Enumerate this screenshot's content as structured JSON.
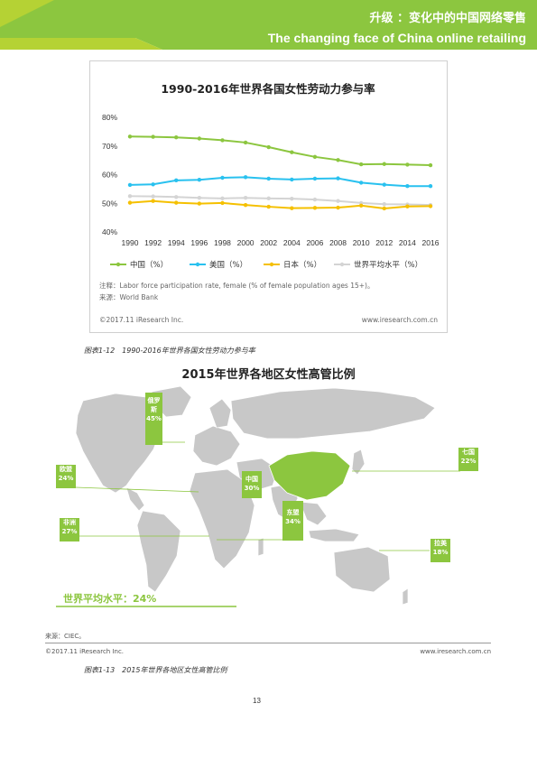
{
  "header": {
    "title": "升级 ：变化中的中国网络零售",
    "subtitle": "The changing face of China online retailing",
    "color": "#8cc63f",
    "accent": "#b5d234"
  },
  "chart_panel": {
    "note": "注释：Labor force participation rate, female (% of female population ages 15+)。",
    "source": "来源：World Bank",
    "copyright": "©2017.11 iResearch Inc.",
    "website": "www.iresearch.com.cn"
  },
  "chart_data": {
    "type": "line",
    "title": "1990-2016年世界各国女性劳动力参与率",
    "x": [
      "1990",
      "1992",
      "1994",
      "1996",
      "1998",
      "2000",
      "2002",
      "2004",
      "2006",
      "2008",
      "2010",
      "2012",
      "2014",
      "2016"
    ],
    "xlabel": "",
    "ylabel": "",
    "ylim": [
      40,
      80
    ],
    "yticks": [
      "80%",
      "70%",
      "60%",
      "50%",
      "40%"
    ],
    "grid": false,
    "legend_position": "bottom",
    "series": [
      {
        "name": "中国（%）",
        "color": "#8cc63f",
        "values": [
          73.3,
          73.2,
          73.0,
          72.6,
          72.0,
          71.2,
          69.6,
          67.8,
          66.2,
          65.1,
          63.6,
          63.7,
          63.5,
          63.3
        ]
      },
      {
        "name": "美国（%）",
        "color": "#29c1ef",
        "values": [
          56.4,
          56.6,
          58.0,
          58.2,
          58.9,
          59.1,
          58.6,
          58.3,
          58.6,
          58.7,
          57.2,
          56.5,
          56.0,
          56.0
        ]
      },
      {
        "name": "日本（%）",
        "color": "#f5c000",
        "values": [
          50.2,
          50.8,
          50.2,
          49.9,
          50.1,
          49.4,
          48.8,
          48.3,
          48.4,
          48.5,
          49.2,
          48.2,
          48.9,
          49.0
        ]
      },
      {
        "name": "世界平均水平（%）",
        "color": "#d4d4d4",
        "values": [
          52.5,
          52.4,
          52.2,
          51.9,
          51.7,
          51.9,
          51.7,
          51.6,
          51.3,
          50.8,
          50.1,
          49.7,
          49.6,
          49.4
        ]
      }
    ]
  },
  "caption1": "图表1-12　1990-2016年世界各国女性劳动力参与率",
  "map": {
    "title": "2015年世界各地区女性高管比例",
    "world_avg": "世界平均水平：24%",
    "labels": [
      {
        "name": "俄罗斯",
        "value": "45%"
      },
      {
        "name": "欧盟",
        "value": "24%"
      },
      {
        "name": "中国",
        "value": "30%"
      },
      {
        "name": "非洲",
        "value": "27%"
      },
      {
        "name": "东盟",
        "value": "34%"
      },
      {
        "name": "七国",
        "value": "22%"
      },
      {
        "name": "拉美",
        "value": "18%"
      }
    ],
    "highlight_color": "#8cc63f",
    "land_color": "#c8c8c8"
  },
  "footer": {
    "source": "来源：CIEC。",
    "copyright": "©2017.11 iResearch Inc.",
    "website": "www.iresearch.com.cn",
    "caption": "图表1-13　2015年世界各地区女性高管比例",
    "page_number": "13"
  }
}
